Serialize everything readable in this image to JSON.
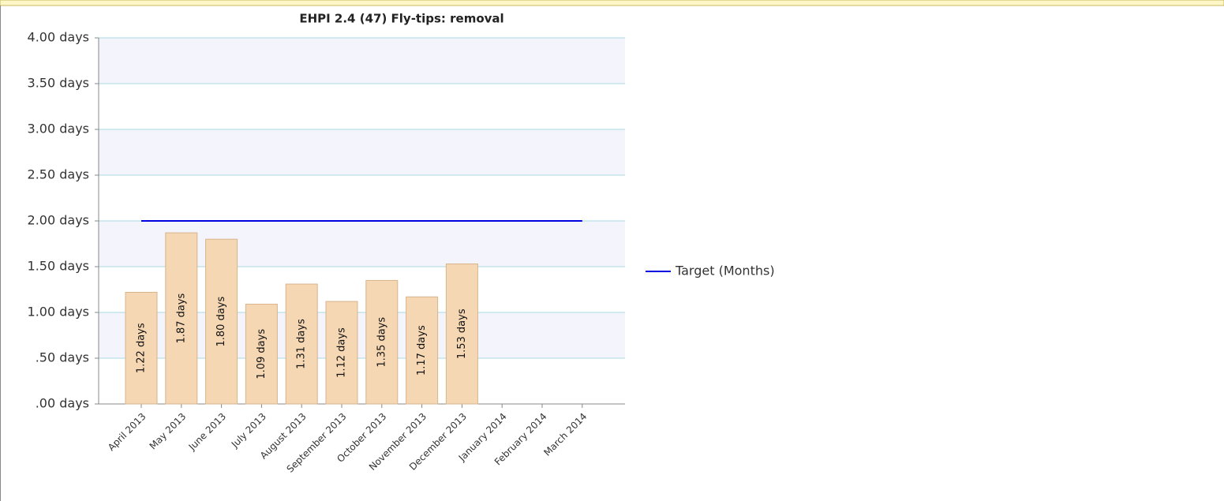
{
  "chart_data": {
    "type": "bar",
    "title": "EHPI 2.4 (47) Fly-tips: removal",
    "categories": [
      "April 2013",
      "May 2013",
      "June 2013",
      "July 2013",
      "August 2013",
      "September 2013",
      "October 2013",
      "November 2013",
      "December 2013",
      "January 2014",
      "February 2014",
      "March 2014"
    ],
    "series": [
      {
        "type": "bar",
        "color": "#f5d7b3",
        "values": [
          1.22,
          1.87,
          1.8,
          1.09,
          1.31,
          1.12,
          1.35,
          1.17,
          1.53,
          null,
          null,
          null
        ],
        "value_labels": [
          "1.22 days",
          "1.87 days",
          "1.80 days",
          "1.09 days",
          "1.31 days",
          "1.12 days",
          "1.35 days",
          "1.17 days",
          "1.53 days",
          null,
          null,
          null
        ]
      },
      {
        "type": "line",
        "name": "Target (Months)",
        "color": "#0000e0",
        "values": [
          2,
          2,
          2,
          2,
          2,
          2,
          2,
          2,
          2,
          2,
          2,
          2
        ]
      }
    ],
    "ylim": [
      0,
      4
    ],
    "yticks": [
      {
        "value": 0,
        "label": ".00 days"
      },
      {
        "value": 0.5,
        "label": ".50 days"
      },
      {
        "value": 1,
        "label": "1.00 days"
      },
      {
        "value": 1.5,
        "label": "1.50 days"
      },
      {
        "value": 2,
        "label": "2.00 days"
      },
      {
        "value": 2.5,
        "label": "2.50 days"
      },
      {
        "value": 3,
        "label": "3.00 days"
      },
      {
        "value": 3.5,
        "label": "3.50 days"
      },
      {
        "value": 4,
        "label": "4.00 days"
      }
    ],
    "grid": true,
    "legend": "right"
  }
}
